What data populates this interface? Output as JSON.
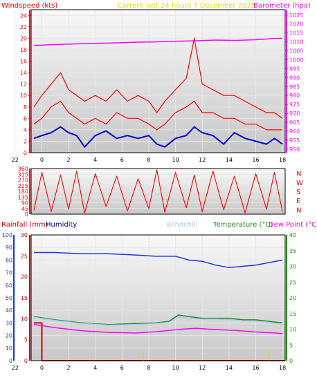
{
  "colors": {
    "wind": "#ff0000",
    "gust": "#ff0000",
    "avgwind": "#0000cc",
    "baro": "#ff00ff",
    "bearing": "#ff0000",
    "rain": "#cc0000",
    "humidity": "#2233dd",
    "windchill": "#aaccee",
    "temperature": "#228822",
    "dewpoint": "#ff00ff",
    "title": "#dddd00",
    "raintick": "#e0e000",
    "bg": "#ffffff",
    "plot_top": "#f8f8f8",
    "plot_bottom": "#c8c8c8",
    "grid": "#e6e6e6",
    "border": "#000000"
  },
  "chart_data": [
    {
      "type": "line",
      "title": "Current last 24 hours 7 December 2025",
      "ylabel": "Windspeed (kts)",
      "ylabel_right": "Barometer (hpa)",
      "ylim": [
        0,
        25
      ],
      "y_ticks": [
        0,
        2,
        4,
        6,
        8,
        10,
        12,
        14,
        16,
        18,
        20,
        22,
        24
      ],
      "ylim_right": [
        948,
        1028
      ],
      "y_ticks_right": [
        950,
        955,
        960,
        965,
        970,
        975,
        980,
        985,
        990,
        995,
        1000,
        1005,
        1010,
        1015,
        1020,
        1025
      ],
      "x_range": [
        -0.8,
        18.2
      ],
      "x_ticks": [
        20,
        22,
        0,
        2,
        4,
        6,
        8,
        10,
        12,
        14,
        16,
        18
      ],
      "grid": true,
      "series": [
        {
          "role": "gust",
          "axis": "left",
          "style": "line",
          "x": [
            -0.6,
            0.0,
            0.7,
            1.4,
            2.0,
            2.6,
            3.2,
            4.0,
            4.8,
            5.6,
            6.4,
            7.2,
            8.0,
            8.6,
            9.2,
            10.0,
            10.8,
            11.4,
            12.0,
            12.8,
            13.6,
            14.4,
            15.2,
            16.0,
            16.8,
            17.4,
            18.0
          ],
          "y": [
            8,
            10,
            12,
            14,
            11,
            10,
            9,
            10,
            9,
            11,
            9,
            10,
            9,
            7,
            9,
            11,
            13,
            20,
            12,
            11,
            10,
            10,
            9,
            8,
            7,
            7,
            6
          ]
        },
        {
          "role": "wind",
          "axis": "left",
          "style": "line",
          "x": [
            -0.6,
            0.0,
            0.7,
            1.4,
            2.0,
            2.6,
            3.2,
            4.0,
            4.8,
            5.6,
            6.4,
            7.2,
            8.0,
            8.6,
            9.2,
            10.0,
            10.8,
            11.4,
            12.0,
            12.8,
            13.6,
            14.4,
            15.2,
            16.0,
            16.8,
            17.4,
            18.0
          ],
          "y": [
            5,
            6,
            8,
            9,
            7,
            6,
            5,
            6,
            5,
            7,
            6,
            6,
            5,
            4,
            5,
            7,
            8,
            9,
            7,
            7,
            6,
            6,
            5,
            5,
            4,
            4,
            4
          ]
        },
        {
          "role": "avgwind",
          "axis": "left",
          "style": "line",
          "x": [
            -0.6,
            0.0,
            0.7,
            1.4,
            2.0,
            2.6,
            3.2,
            4.0,
            4.8,
            5.6,
            6.4,
            7.2,
            8.0,
            8.6,
            9.2,
            10.0,
            10.8,
            11.4,
            12.0,
            12.8,
            13.6,
            14.4,
            15.2,
            16.0,
            16.8,
            17.4,
            18.0
          ],
          "y": [
            2.5,
            3.0,
            3.5,
            4.5,
            3.5,
            3.0,
            1.0,
            3.0,
            3.8,
            2.5,
            3.0,
            2.5,
            3.0,
            1.5,
            1.0,
            2.5,
            3.0,
            4.5,
            3.5,
            3.0,
            1.5,
            3.5,
            2.5,
            2.0,
            1.5,
            2.5,
            1.5
          ]
        },
        {
          "role": "baro",
          "axis": "right",
          "style": "line",
          "x": [
            -0.6,
            1.0,
            3.0,
            5.0,
            7.0,
            8.5,
            10.0,
            11.5,
            13.0,
            14.5,
            16.0,
            17.2,
            18.0
          ],
          "y": [
            1008.0,
            1008.5,
            1009.0,
            1009.3,
            1009.8,
            1010.0,
            1010.3,
            1010.6,
            1011.0,
            1010.8,
            1011.2,
            1011.8,
            1012.0
          ]
        }
      ]
    },
    {
      "type": "scatter",
      "title": "",
      "ylabel": "",
      "ylim": [
        0,
        360
      ],
      "y_ticks": [
        0,
        45,
        90,
        135,
        180,
        225,
        270,
        315,
        360
      ],
      "compass_labels": [
        "N",
        "W",
        "S",
        "E",
        "N"
      ],
      "x_range": [
        -0.8,
        18.2
      ],
      "grid": true,
      "series": [
        {
          "role": "bearing",
          "style": "line",
          "x": [
            -0.6,
            0.0,
            0.7,
            1.4,
            2.0,
            2.6,
            3.2,
            4.0,
            4.8,
            5.6,
            6.4,
            7.2,
            8.0,
            8.6,
            9.2,
            10.0,
            10.8,
            11.4,
            12.0,
            12.8,
            13.6,
            14.4,
            15.2,
            16.0,
            16.8,
            17.4,
            18.0
          ],
          "y": [
            30,
            330,
            20,
            310,
            40,
            340,
            10,
            320,
            60,
            300,
            25,
            280,
            45,
            350,
            15,
            330,
            50,
            310,
            20,
            340,
            35,
            300,
            10,
            320,
            40,
            330,
            20
          ]
        }
      ]
    },
    {
      "type": "line",
      "title": "",
      "legend": [
        "Rainfall (mm)",
        "Humidity",
        "Windchill",
        "Temperature (°C)",
        "Dew Point (°C)"
      ],
      "legend_placement": "top",
      "ylabel": "",
      "ylim": [
        0,
        100
      ],
      "y_ticks": [
        0,
        10,
        20,
        30,
        40,
        50,
        60,
        70,
        80,
        90,
        100
      ],
      "ylim_rain": [
        0,
        30
      ],
      "y_ticks_rain": [
        0,
        5,
        10,
        15,
        20,
        25,
        30
      ],
      "ylim_right": [
        0,
        40
      ],
      "y_ticks_right": [
        0,
        5,
        10,
        15,
        20,
        25,
        30,
        35,
        40
      ],
      "x_range": [
        -0.8,
        18.2
      ],
      "x_ticks": [
        20,
        22,
        0,
        2,
        4,
        6,
        8,
        10,
        12,
        14,
        16,
        18
      ],
      "grid": true,
      "series": [
        {
          "role": "humidity",
          "axis": "left",
          "style": "line",
          "x": [
            -0.6,
            1.0,
            3.0,
            5.0,
            7.0,
            8.5,
            10.0,
            11.0,
            12.0,
            13.0,
            14.0,
            15.0,
            16.0,
            17.0,
            18.0
          ],
          "y": [
            86,
            86,
            85,
            85,
            84,
            83,
            83,
            80,
            79,
            76,
            74,
            75,
            76,
            78,
            80
          ]
        },
        {
          "role": "temperature",
          "axis": "right",
          "style": "line",
          "x": [
            -0.6,
            1.0,
            3.0,
            5.0,
            7.0,
            8.5,
            9.5,
            10.2,
            11.0,
            12.0,
            13.0,
            14.0,
            15.0,
            16.0,
            17.0,
            18.0
          ],
          "y": [
            14.0,
            13.0,
            12.0,
            11.5,
            11.8,
            12.0,
            12.5,
            14.5,
            14.0,
            13.5,
            13.5,
            13.5,
            13.0,
            13.0,
            12.5,
            12.0
          ]
        },
        {
          "role": "windchill",
          "axis": "right",
          "style": "line",
          "x": [
            -0.6,
            1.0,
            3.0,
            5.0,
            7.0,
            8.5,
            9.5,
            10.2,
            11.0,
            12.0,
            13.0,
            14.0,
            15.0,
            16.0,
            17.0,
            18.0
          ],
          "y": [
            13.8,
            12.8,
            11.8,
            11.3,
            11.5,
            11.8,
            12.2,
            13.8,
            13.5,
            13.2,
            13.2,
            13.0,
            12.7,
            12.6,
            12.1,
            11.6
          ]
        },
        {
          "role": "dewpoint",
          "axis": "right",
          "style": "line",
          "x": [
            -0.6,
            1.0,
            3.0,
            5.0,
            7.0,
            8.5,
            9.5,
            10.5,
            11.5,
            12.5,
            13.5,
            14.5,
            15.5,
            16.5,
            17.5,
            18.0
          ],
          "y": [
            11.5,
            10.5,
            9.5,
            9.0,
            8.8,
            9.2,
            9.6,
            10.0,
            10.3,
            10.0,
            9.8,
            9.6,
            9.3,
            9.0,
            8.8,
            8.6
          ]
        },
        {
          "role": "rain",
          "axis": "rain",
          "style": "step",
          "x": [
            -0.6,
            0.0,
            0.0,
            18.2
          ],
          "y": [
            9,
            9,
            0,
            0
          ]
        },
        {
          "role": "raintick",
          "axis": "rain",
          "style": "bars",
          "x": [
            7.6,
            17.0
          ],
          "y": [
            2.5,
            2.5
          ]
        }
      ]
    }
  ]
}
